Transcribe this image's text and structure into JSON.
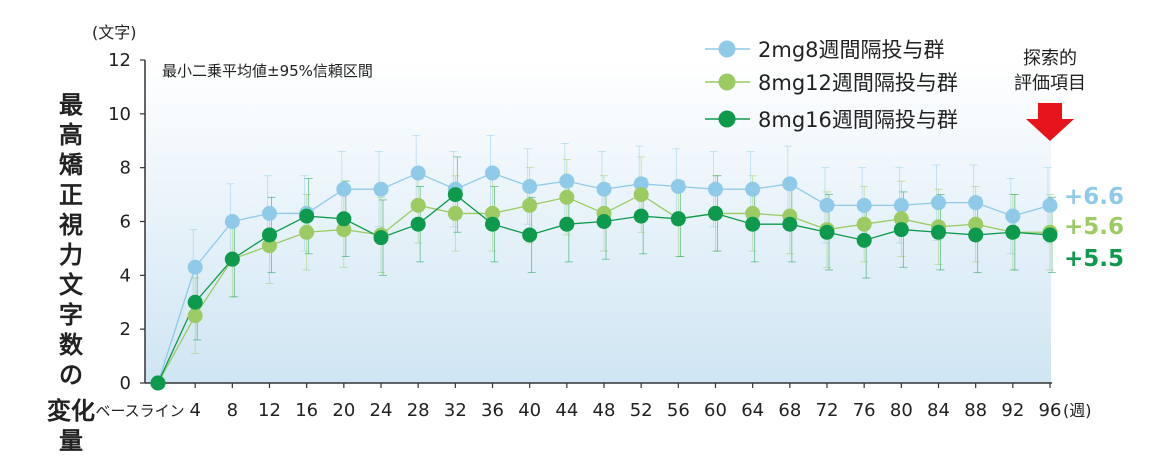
{
  "chart_data": {
    "type": "line",
    "title": "",
    "note": "最小二乗平均値±95%信頼区間",
    "y_unit": "(文字)",
    "ylabel": [
      "最高矯正視力文字数の",
      "変化量"
    ],
    "x_unit": "(週)",
    "categories": [
      "ベースライン",
      "4",
      "8",
      "12",
      "16",
      "20",
      "24",
      "28",
      "32",
      "36",
      "40",
      "44",
      "48",
      "52",
      "56",
      "60",
      "64",
      "68",
      "72",
      "76",
      "80",
      "84",
      "88",
      "92",
      "96"
    ],
    "ylim": [
      0,
      12
    ],
    "yticks": [
      0,
      2,
      4,
      6,
      8,
      10,
      12
    ],
    "grid": false,
    "legend_position": "top-right",
    "series": [
      {
        "name": "2mg8週間隔投与群",
        "color": "#8fcbe8",
        "values": [
          0,
          4.3,
          6.0,
          6.3,
          6.3,
          7.2,
          7.2,
          7.8,
          7.2,
          7.8,
          7.3,
          7.5,
          7.2,
          7.4,
          7.3,
          7.2,
          7.2,
          7.4,
          6.6,
          6.6,
          6.6,
          6.7,
          6.7,
          6.2,
          6.6
        ]
      },
      {
        "name": "8mg12週間隔投与群",
        "color": "#9ccb64",
        "values": [
          0,
          2.5,
          4.6,
          5.1,
          5.6,
          5.7,
          5.5,
          6.6,
          6.3,
          6.3,
          6.6,
          6.9,
          6.3,
          7.0,
          6.1,
          6.3,
          6.3,
          6.2,
          5.7,
          5.9,
          6.1,
          5.8,
          5.9,
          5.6,
          5.6
        ]
      },
      {
        "name": "8mg16週間隔投与群",
        "color": "#0e9a4c",
        "values": [
          0,
          3.0,
          4.6,
          5.5,
          6.2,
          6.1,
          5.4,
          5.9,
          7.0,
          5.9,
          5.5,
          5.9,
          6.0,
          6.2,
          6.1,
          6.3,
          5.9,
          5.9,
          5.6,
          5.3,
          5.7,
          5.6,
          5.5,
          5.6,
          5.5
        ]
      }
    ],
    "end_labels": [
      {
        "text": "+6.6",
        "color": "#8fcbe8"
      },
      {
        "text": "+5.6",
        "color": "#9ccb64"
      },
      {
        "text": "+5.5",
        "color": "#0e9a4c"
      }
    ],
    "annotation": [
      "探索的",
      "評価項目"
    ],
    "annotation_arrow_color": "#e8141b",
    "background_gradient": [
      "#ffffff",
      "#cfe5f3"
    ]
  }
}
